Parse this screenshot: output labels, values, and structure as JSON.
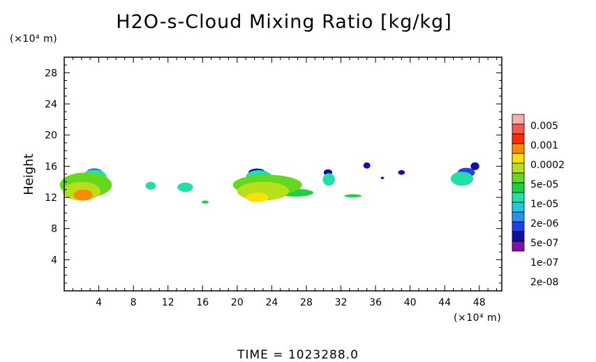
{
  "chart_data": {
    "type": "heatmap",
    "title": "H2O-s-Cloud Mixing Ratio [kg/kg]",
    "ylabel": "Height",
    "xlabel": "",
    "x_unit": "(×10⁴ m)",
    "y_unit": "(×10⁴ m)",
    "xlim": [
      0,
      50.6
    ],
    "ylim": [
      0,
      30
    ],
    "x_ticks": [
      "4",
      "8",
      "12",
      "16",
      "20",
      "24",
      "28",
      "32",
      "36",
      "40",
      "44",
      "48"
    ],
    "y_ticks": [
      "4",
      "8",
      "12",
      "16",
      "20",
      "24",
      "28"
    ],
    "time_label": "TIME = 1023288.0",
    "colorbar": {
      "labels": [
        "0.005",
        "0.001",
        "0.0002",
        "5e-05",
        "1e-05",
        "2e-06",
        "5e-07",
        "1e-07",
        "2e-08"
      ],
      "colors": [
        "#fbb0b0",
        "#f85a4a",
        "#ff2a00",
        "#ff8a00",
        "#ffe000",
        "#b8e01a",
        "#64d81c",
        "#20d040",
        "#20e0a8",
        "#20c8e0",
        "#2890f0",
        "#2040e8",
        "#1010a8",
        "#8010a8"
      ]
    },
    "regions": [
      {
        "x": 2.2,
        "y": 12.3,
        "rx": 1.1,
        "ry": 0.7,
        "level": 3
      },
      {
        "x": 2.0,
        "y": 12.8,
        "rx": 2.2,
        "ry": 1.2,
        "level": 5
      },
      {
        "x": 2.5,
        "y": 13.6,
        "rx": 3.0,
        "ry": 1.6,
        "level": 6
      },
      {
        "x": 3.5,
        "y": 14.6,
        "rx": 1.4,
        "ry": 1.0,
        "level": 8
      },
      {
        "x": 3.5,
        "y": 15.1,
        "rx": 1.0,
        "ry": 0.6,
        "level": 12
      },
      {
        "x": 10.0,
        "y": 13.5,
        "rx": 0.6,
        "ry": 0.5,
        "level": 8
      },
      {
        "x": 14.0,
        "y": 13.3,
        "rx": 0.9,
        "ry": 0.6,
        "level": 8
      },
      {
        "x": 16.3,
        "y": 11.4,
        "rx": 0.4,
        "ry": 0.2,
        "level": 7
      },
      {
        "x": 22.3,
        "y": 12.0,
        "rx": 1.3,
        "ry": 0.6,
        "level": 4
      },
      {
        "x": 23.0,
        "y": 12.8,
        "rx": 3.0,
        "ry": 1.2,
        "level": 5
      },
      {
        "x": 23.5,
        "y": 13.6,
        "rx": 4.0,
        "ry": 1.3,
        "level": 6
      },
      {
        "x": 22.5,
        "y": 14.6,
        "rx": 1.5,
        "ry": 0.9,
        "level": 8
      },
      {
        "x": 22.3,
        "y": 15.2,
        "rx": 1.0,
        "ry": 0.5,
        "level": 12
      },
      {
        "x": 26.8,
        "y": 12.6,
        "rx": 2.0,
        "ry": 0.5,
        "level": 7
      },
      {
        "x": 30.6,
        "y": 14.3,
        "rx": 0.7,
        "ry": 0.8,
        "level": 8
      },
      {
        "x": 30.5,
        "y": 15.2,
        "rx": 0.5,
        "ry": 0.4,
        "level": 12
      },
      {
        "x": 33.4,
        "y": 12.2,
        "rx": 1.0,
        "ry": 0.2,
        "level": 7
      },
      {
        "x": 35.0,
        "y": 16.1,
        "rx": 0.4,
        "ry": 0.4,
        "level": 12
      },
      {
        "x": 36.8,
        "y": 14.5,
        "rx": 0.2,
        "ry": 0.15,
        "level": 12
      },
      {
        "x": 39.0,
        "y": 15.2,
        "rx": 0.4,
        "ry": 0.3,
        "level": 12
      },
      {
        "x": 46.0,
        "y": 14.4,
        "rx": 1.3,
        "ry": 0.9,
        "level": 8
      },
      {
        "x": 46.5,
        "y": 15.2,
        "rx": 1.0,
        "ry": 0.6,
        "level": 11
      },
      {
        "x": 47.5,
        "y": 16.0,
        "rx": 0.5,
        "ry": 0.5,
        "level": 12
      }
    ]
  }
}
